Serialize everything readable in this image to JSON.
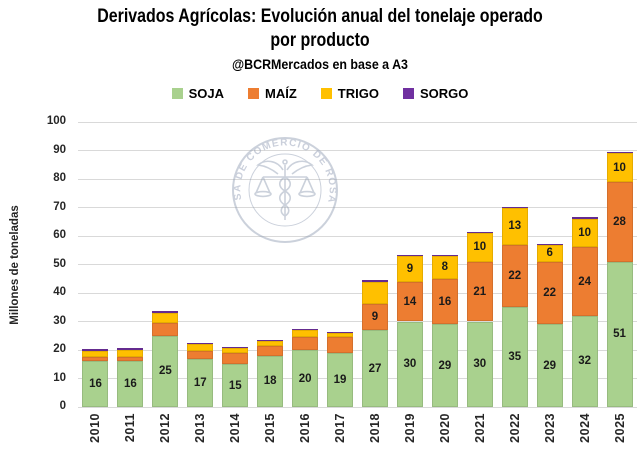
{
  "header": {
    "title_line1": "Derivados Agrícolas: Evolución anual del tonelaje operado",
    "title_line2": "por producto",
    "subtitle": "@BCRMercados en base a A3"
  },
  "watermark": {
    "text": "BOLSA DE COMERCIO DE ROSARIO"
  },
  "chart_data": {
    "type": "bar",
    "stacked": true,
    "title": "Derivados Agrícolas: Evolución anual del tonelaje operado por producto",
    "subtitle": "@BCRMercados en base a A3",
    "ylabel": "Millones de toneladas",
    "ylim": [
      0,
      100
    ],
    "ytick_step": 10,
    "grid": true,
    "legend_position": "top",
    "categories": [
      "2010",
      "2011",
      "2012",
      "2013",
      "2014",
      "2015",
      "2016",
      "2017",
      "2018",
      "2019",
      "2020",
      "2021",
      "2022",
      "2023",
      "2024",
      "2025"
    ],
    "series": [
      {
        "name": "SOJA",
        "color": "#a9d18e",
        "values": [
          16,
          16,
          25,
          17,
          15,
          18,
          20,
          19,
          27,
          30,
          29,
          30,
          35,
          29,
          32,
          51
        ],
        "data_labels": [
          "16",
          "16",
          "25",
          "17",
          "15",
          "18",
          "20",
          "19",
          "27",
          "30",
          "29",
          "30",
          "35",
          "29",
          "32",
          "51"
        ]
      },
      {
        "name": "MAÍZ",
        "color": "#ed7d31",
        "values": [
          1.5,
          1.7,
          4.5,
          2.5,
          3.8,
          3.5,
          4.5,
          5.5,
          9,
          14,
          16,
          21,
          22,
          22,
          24,
          28
        ],
        "data_labels": [
          null,
          null,
          null,
          null,
          null,
          null,
          null,
          null,
          "9",
          "14",
          "16",
          "21",
          "22",
          "22",
          "24",
          "28"
        ]
      },
      {
        "name": "TRIGO",
        "color": "#ffc000",
        "values": [
          2,
          2.3,
          3.5,
          2.6,
          2,
          1.6,
          2.5,
          1.5,
          8,
          9,
          8,
          10,
          13,
          6,
          10,
          10
        ],
        "data_labels": [
          null,
          null,
          null,
          null,
          null,
          null,
          null,
          null,
          null,
          "9",
          "8",
          "10",
          "13",
          "6",
          "10",
          "10"
        ]
      },
      {
        "name": "SORGO",
        "color": "#7030a0",
        "values": [
          0.7,
          0.7,
          0.7,
          0.4,
          0.4,
          0.3,
          0.2,
          0.4,
          0.5,
          0.3,
          0.2,
          0.3,
          0.2,
          0.2,
          0.5,
          0.5
        ],
        "data_labels": [
          null,
          null,
          null,
          null,
          null,
          null,
          null,
          null,
          null,
          null,
          null,
          null,
          null,
          null,
          null,
          null
        ]
      }
    ]
  }
}
